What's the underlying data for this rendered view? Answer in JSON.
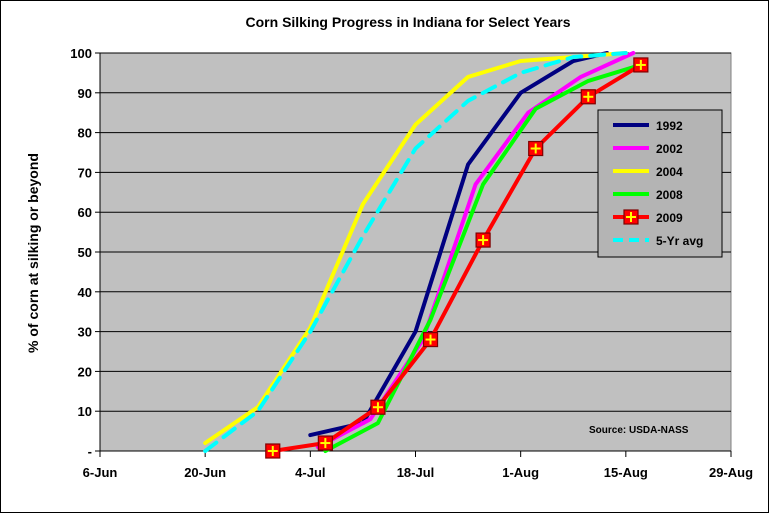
{
  "chart_data": {
    "type": "line",
    "title": "Corn Silking Progress in Indiana for Select Years",
    "xlabel": "",
    "ylabel": "% of corn at silking or beyond",
    "x_ticks": [
      {
        "day": 0,
        "label": "6-Jun"
      },
      {
        "day": 14,
        "label": "20-Jun"
      },
      {
        "day": 28,
        "label": "4-Jul"
      },
      {
        "day": 42,
        "label": "18-Jul"
      },
      {
        "day": 56,
        "label": "1-Aug"
      },
      {
        "day": 70,
        "label": "15-Aug"
      },
      {
        "day": 84,
        "label": "29-Aug"
      }
    ],
    "y_ticks": [
      {
        "value": 0,
        "label": "-"
      },
      {
        "value": 10,
        "label": "10"
      },
      {
        "value": 20,
        "label": "20"
      },
      {
        "value": 30,
        "label": "30"
      },
      {
        "value": 40,
        "label": "40"
      },
      {
        "value": 50,
        "label": "50"
      },
      {
        "value": 60,
        "label": "60"
      },
      {
        "value": 70,
        "label": "70"
      },
      {
        "value": 80,
        "label": "80"
      },
      {
        "value": 90,
        "label": "90"
      },
      {
        "value": 100,
        "label": "100"
      }
    ],
    "xlim": [
      0,
      84
    ],
    "ylim": [
      0,
      100
    ],
    "grid": "horizontal",
    "legend_position": "right",
    "series": [
      {
        "name": "1992",
        "color": "#000080",
        "dashed": false,
        "marker": false,
        "x": [
          28,
          35,
          42,
          49,
          56,
          63,
          67.5
        ],
        "y": [
          4,
          7,
          30,
          72,
          90,
          98,
          100
        ]
      },
      {
        "name": "2002",
        "color": "#ff00ff",
        "dashed": false,
        "marker": false,
        "x": [
          29,
          36,
          43,
          50,
          57,
          64,
          71
        ],
        "y": [
          1,
          8,
          28,
          67,
          85,
          94,
          100
        ]
      },
      {
        "name": "2004",
        "color": "#ffff00",
        "dashed": false,
        "marker": false,
        "x": [
          14,
          21,
          28,
          35,
          42,
          49,
          56,
          63,
          70
        ],
        "y": [
          2,
          11,
          31,
          62,
          82,
          94,
          98,
          99,
          100
        ]
      },
      {
        "name": "2008",
        "color": "#00ff00",
        "dashed": false,
        "marker": false,
        "x": [
          30,
          37,
          44,
          51,
          58,
          65,
          72
        ],
        "y": [
          0,
          7,
          33,
          67,
          86,
          93,
          97
        ]
      },
      {
        "name": "2009",
        "color": "#ff0000",
        "dashed": false,
        "marker": true,
        "x": [
          23,
          30,
          37,
          44,
          51,
          58,
          65,
          72
        ],
        "y": [
          0,
          2,
          11,
          28,
          53,
          76,
          89,
          97
        ]
      },
      {
        "name": "5-Yr avg",
        "color": "#00ffff",
        "dashed": true,
        "marker": false,
        "x": [
          14,
          21,
          28,
          35,
          42,
          49,
          56,
          63,
          70
        ],
        "y": [
          0,
          10,
          30,
          54,
          76,
          88,
          95,
          99,
          100
        ]
      }
    ],
    "annotations": [
      {
        "text": "Source: USDA-NASS",
        "position": "bottom-right"
      }
    ]
  }
}
